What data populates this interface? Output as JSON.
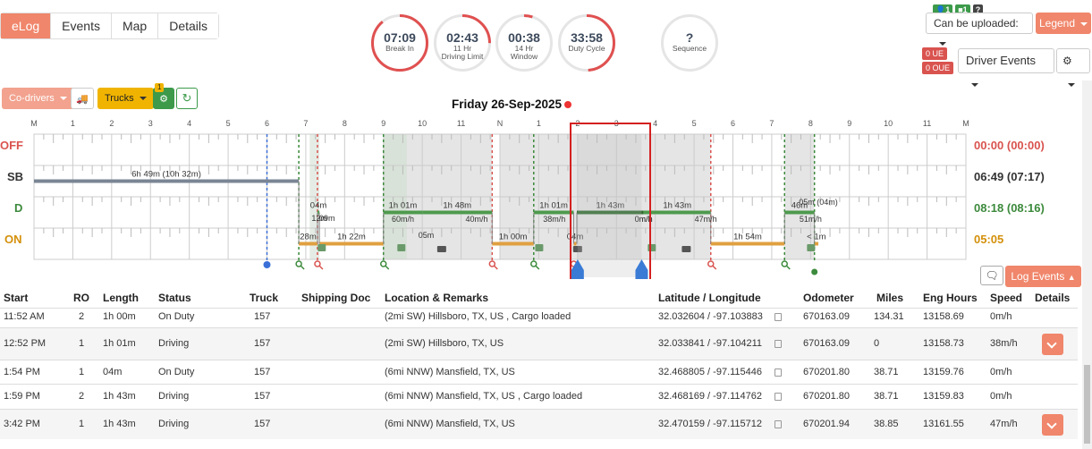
{
  "tabs": [
    "eLog",
    "Events",
    "Map",
    "Details"
  ],
  "gauges": [
    {
      "value": "07:09",
      "label": "Break In",
      "fraction": 0.89,
      "color": "#e05050"
    },
    {
      "value": "02:43",
      "label": "11 Hr\nDriving Limit",
      "fraction": 0.25,
      "color": "#e05050"
    },
    {
      "value": "00:38",
      "label": "14 Hr\nWindow",
      "fraction": 0.05,
      "color": "#e05050"
    },
    {
      "value": "33:58",
      "label": "Duty Cycle",
      "fraction": 0.49,
      "color": "#e05050"
    },
    {
      "value": "?",
      "label": "Sequence",
      "fraction": 0,
      "color": "#e05050"
    }
  ],
  "header": {
    "badges": [
      "1",
      "1",
      "?"
    ],
    "upload_select": "Can be uploaded:",
    "legend": "Legend",
    "ue": "0 UE",
    "oue": "0 OUE",
    "driver_events": "Driver Events"
  },
  "toolbar": {
    "codrivers": "Co-drivers",
    "trucks": "Trucks",
    "engine_badge": "1"
  },
  "chart_data": {
    "type": "timeline",
    "title": "Friday 26-Sep-2025",
    "hour_labels": [
      "M",
      "1",
      "2",
      "3",
      "4",
      "5",
      "6",
      "7",
      "8",
      "9",
      "10",
      "11",
      "N",
      "1",
      "2",
      "3",
      "4",
      "5",
      "6",
      "7",
      "8",
      "9",
      "10",
      "11",
      "M"
    ],
    "statuses": [
      "OFF",
      "SB",
      "D",
      "ON"
    ],
    "status_colors": {
      "OFF": "#d9534f",
      "SB": "#333333",
      "D": "#3c8a3c",
      "ON": "#d4900a"
    },
    "totals": [
      "00:00 (00:00)",
      "06:49 (07:17)",
      "08:18 (08:16)",
      "05:05"
    ],
    "segments": [
      {
        "status": "SB",
        "start": 0.0,
        "end": 6.82,
        "label": "6h 49m (10h 32m)"
      },
      {
        "status": "ON",
        "start": 6.82,
        "end": 7.3,
        "label": "28m"
      },
      {
        "status": "D",
        "start": 7.3,
        "end": 7.35,
        "label": "04m"
      },
      {
        "status": "ON",
        "start": 7.35,
        "end": 9.0,
        "label": "1h 22m"
      },
      {
        "status": "D",
        "start": 9.0,
        "end": 10.0,
        "label": "1h 01m"
      },
      {
        "status": "D",
        "start": 10.0,
        "end": 11.8,
        "label": "1h 48m"
      },
      {
        "status": "ON",
        "start": 11.8,
        "end": 12.87,
        "label": "1h 00m"
      },
      {
        "status": "D",
        "start": 12.87,
        "end": 13.9,
        "label": "1h 01m"
      },
      {
        "status": "ON",
        "start": 13.9,
        "end": 13.97,
        "label": "04m"
      },
      {
        "status": "D",
        "start": 13.98,
        "end": 15.7,
        "label": "1h 43m"
      },
      {
        "status": "D",
        "start": 15.7,
        "end": 17.43,
        "label": "1h 43m"
      },
      {
        "status": "ON",
        "start": 17.43,
        "end": 19.33,
        "label": "1h 54m"
      },
      {
        "status": "D",
        "start": 19.33,
        "end": 20.1,
        "label": "46m"
      },
      {
        "status": "ON",
        "start": 20.1,
        "end": 20.2,
        "label": "< 1m"
      }
    ],
    "extra_labels": [
      "12m",
      "09m",
      "05m",
      "0m/h",
      "60m/h",
      "40m/h",
      "38m/h",
      "0m/h",
      "47m/h",
      "51m/h",
      "05m (04m)"
    ]
  },
  "log_events": "Log Events",
  "table": {
    "headers": [
      "Start",
      "RO",
      "Length",
      "Status",
      "Truck",
      "Shipping Doc",
      "Location & Remarks",
      "Latitude / Longitude",
      "Odometer",
      "Miles",
      "Eng Hours",
      "Speed",
      "Details"
    ],
    "rows": [
      {
        "start": "11:52 AM",
        "ro": "2",
        "length": "1h 00m",
        "status": "On Duty",
        "truck": "157",
        "doc": "",
        "location": "(2mi SW) Hillsboro, TX, US , Cargo loaded",
        "latlng": "32.032604 / -97.103883",
        "odometer": "670163.09",
        "miles": "134.31",
        "eng": "13158.69",
        "speed": "0m/h",
        "details": false
      },
      {
        "start": "12:52 PM",
        "ro": "1",
        "length": "1h 01m",
        "status": "Driving",
        "truck": "157",
        "doc": "",
        "location": "(2mi SW) Hillsboro, TX, US",
        "latlng": "32.033841 / -97.104211",
        "odometer": "670163.09",
        "miles": "0",
        "eng": "13158.73",
        "speed": "38m/h",
        "details": true
      },
      {
        "start": "1:54 PM",
        "ro": "1",
        "length": "04m",
        "status": "On Duty",
        "truck": "157",
        "doc": "",
        "location": "(6mi NNW) Mansfield, TX, US",
        "latlng": "32.468805 / -97.115446",
        "odometer": "670201.80",
        "miles": "38.71",
        "eng": "13159.76",
        "speed": "0m/h",
        "details": false
      },
      {
        "start": "1:59 PM",
        "ro": "2",
        "length": "1h 43m",
        "status": "Driving",
        "truck": "157",
        "doc": "",
        "location": "(6mi NNW) Mansfield, TX, US , Cargo loaded",
        "latlng": "32.468169 / -97.114762",
        "odometer": "670201.80",
        "miles": "38.71",
        "eng": "13159.83",
        "speed": "0m/h",
        "details": false
      },
      {
        "start": "3:42 PM",
        "ro": "1",
        "length": "1h 43m",
        "status": "Driving",
        "truck": "157",
        "doc": "",
        "location": "(6mi NNW) Mansfield, TX, US",
        "latlng": "32.470159 / -97.115712",
        "odometer": "670201.94",
        "miles": "38.85",
        "eng": "13161.55",
        "speed": "47m/h",
        "details": true
      }
    ]
  }
}
